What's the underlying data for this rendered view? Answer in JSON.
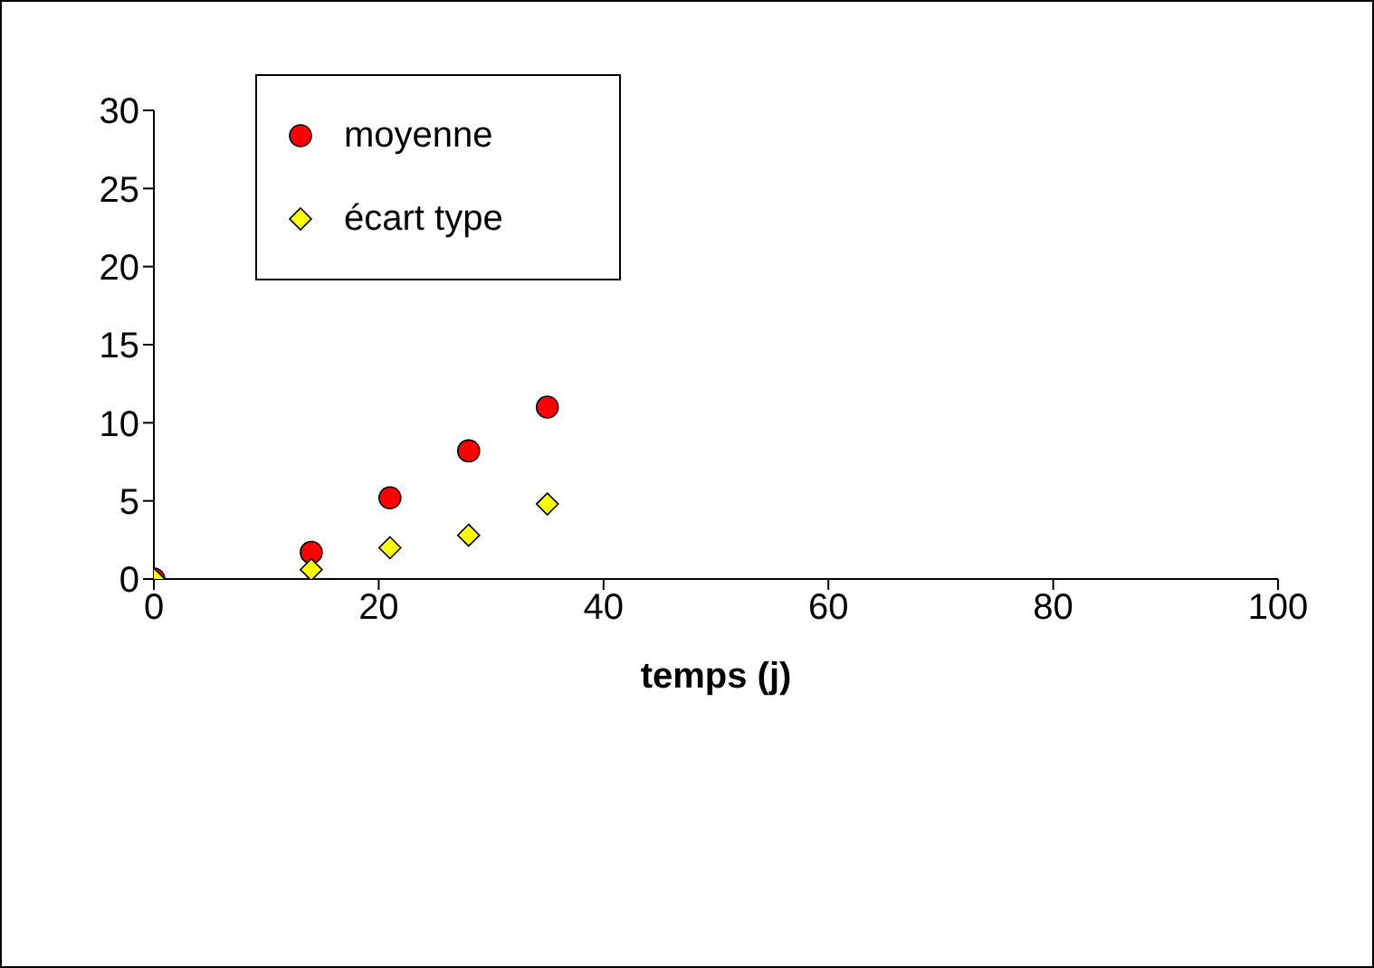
{
  "chart_data": {
    "type": "scatter",
    "xlabel": "temps (j)",
    "xlim": [
      0,
      100
    ],
    "xticks": [
      0,
      20,
      40,
      60,
      80,
      100
    ],
    "ylim": [
      0,
      30
    ],
    "yticks": [
      0,
      5,
      10,
      15,
      20,
      25,
      30
    ],
    "grid": false,
    "legend": "top left",
    "series": [
      {
        "name": "moyenne",
        "color": "#ff0000",
        "marker": "circle",
        "x": [
          0,
          14,
          21,
          28,
          35
        ],
        "values": [
          0,
          1.7,
          5.2,
          8.2,
          11.0
        ]
      },
      {
        "name": "écart type",
        "color": "#ffff00",
        "marker": "diamond",
        "x": [
          0,
          14,
          21,
          28,
          35
        ],
        "values": [
          0,
          0.6,
          2.0,
          2.8,
          4.8
        ]
      }
    ]
  }
}
